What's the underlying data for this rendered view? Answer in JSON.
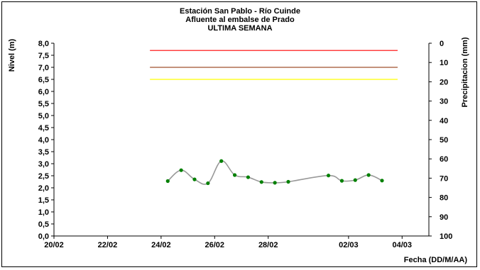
{
  "chart_data": {
    "type": "line",
    "title": "Estación San Pablo - Río Cuinde",
    "subtitle_lines": [
      "Afluente al embalse de Prado",
      "ULTIMA SEMANA"
    ],
    "xlabel": "Fecha (DD/M/AA)",
    "ylabel_left": "Nivel (m)",
    "ylabel_right": "Precipitacion (mm)",
    "x_ticks": [
      "20/02",
      "22/02",
      "24/02",
      "26/02",
      "28/02",
      "02/03",
      "04/03"
    ],
    "y_left_ticks": [
      "0,0",
      "0,5",
      "1,0",
      "1,5",
      "2,0",
      "2,5",
      "3,0",
      "3,5",
      "4,0",
      "4,5",
      "5,0",
      "5,5",
      "6,0",
      "6,5",
      "7,0",
      "7,5",
      "8,0"
    ],
    "y_right_ticks": [
      "0",
      "10",
      "20",
      "30",
      "40",
      "50",
      "60",
      "70",
      "80",
      "90",
      "100"
    ],
    "ylim_left": [
      0,
      8
    ],
    "ylim_right": [
      100,
      0
    ],
    "xlim_days": [
      0,
      14
    ],
    "grid": false,
    "series": [
      {
        "color": "#999999",
        "marker_color": "#008000",
        "x": [
          "24/02 06:00",
          "24/02 18:00",
          "25/02 06:00",
          "25/02 18:00",
          "26/02 06:00",
          "26/02 18:00",
          "27/02 06:00",
          "27/02 18:00",
          "28/02 06:00",
          "28/02 18:00",
          "01/03 06:00",
          "01/03 18:00",
          "02/03 06:00",
          "02/03 18:00",
          "03/03 06:00"
        ],
        "values": [
          2.28,
          2.73,
          2.35,
          2.19,
          3.11,
          2.53,
          2.44,
          2.24,
          2.21,
          2.25,
          2.51,
          2.29,
          2.32,
          2.53,
          2.3
        ]
      }
    ],
    "threshold_lines": [
      {
        "value": 7.7,
        "color": "#ff0000",
        "x_start": "23/02 14:00",
        "x_end": "03/03 20:00"
      },
      {
        "value": 7.0,
        "color": "#a0522d",
        "x_start": "23/02 14:00",
        "x_end": "03/03 20:00"
      },
      {
        "value": 6.5,
        "color": "#ffff00",
        "x_start": "23/02 14:00",
        "x_end": "03/03 20:00"
      }
    ]
  }
}
